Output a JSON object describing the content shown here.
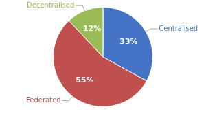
{
  "chart_data": {
    "type": "pie",
    "categories": [
      "Centralised",
      "Federated",
      "Decentralised"
    ],
    "values": [
      33,
      55,
      12
    ],
    "value_labels": [
      "33%",
      "55%",
      "12%"
    ],
    "colors": [
      "#4472C4",
      "#C0504D",
      "#9BBB59"
    ],
    "data_labels": true,
    "legend": false
  }
}
